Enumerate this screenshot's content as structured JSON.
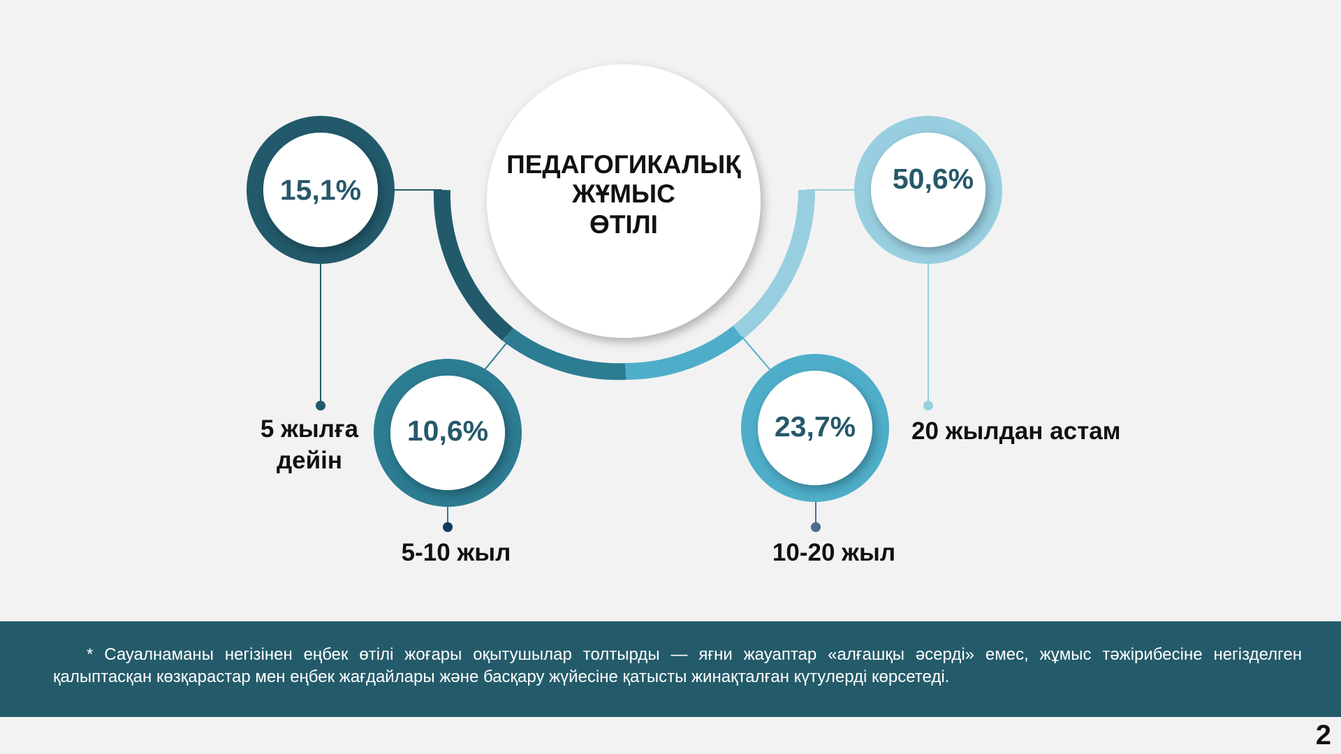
{
  "slide": {
    "title_lines": [
      "ПЕДАГОГИКАЛЫҚ",
      "ЖҰМЫС",
      "ӨТІЛІ"
    ],
    "items": [
      {
        "id": "lt5",
        "percent": "15,1%",
        "value": 15.1,
        "label_lines": [
          "5 жылға",
          "дейін"
        ],
        "color": "#225a6b"
      },
      {
        "id": "5to10",
        "percent": "10,6%",
        "value": 10.6,
        "label_lines": [
          "5-10 жыл"
        ],
        "color": "#2c7c92"
      },
      {
        "id": "10to20",
        "percent": "23,7%",
        "value": 23.7,
        "label_lines": [
          "10-20 жыл"
        ],
        "color": "#4eaec9"
      },
      {
        "id": "gt20",
        "percent": "50,6%",
        "value": 50.6,
        "label_lines": [
          "20 жылдан астам"
        ],
        "color": "#98cfe0"
      }
    ],
    "footnote": "* Сауалнаманы негізінен еңбек өтілі жоғары оқытушылар толтырды — яғни жауаптар «алғашқы әсерді» емес, жұмыс тәжірибесіне негізделген қалыптасқан көзқарастар мен еңбек жағдайлары және басқару жүйесіне қатысты жинақталған күтулерді көрсетеді.",
    "page_number": "2",
    "colors": {
      "footer_bg": "#245b6a",
      "percent_text": "#27586a",
      "background": "#f2f2f2"
    }
  }
}
